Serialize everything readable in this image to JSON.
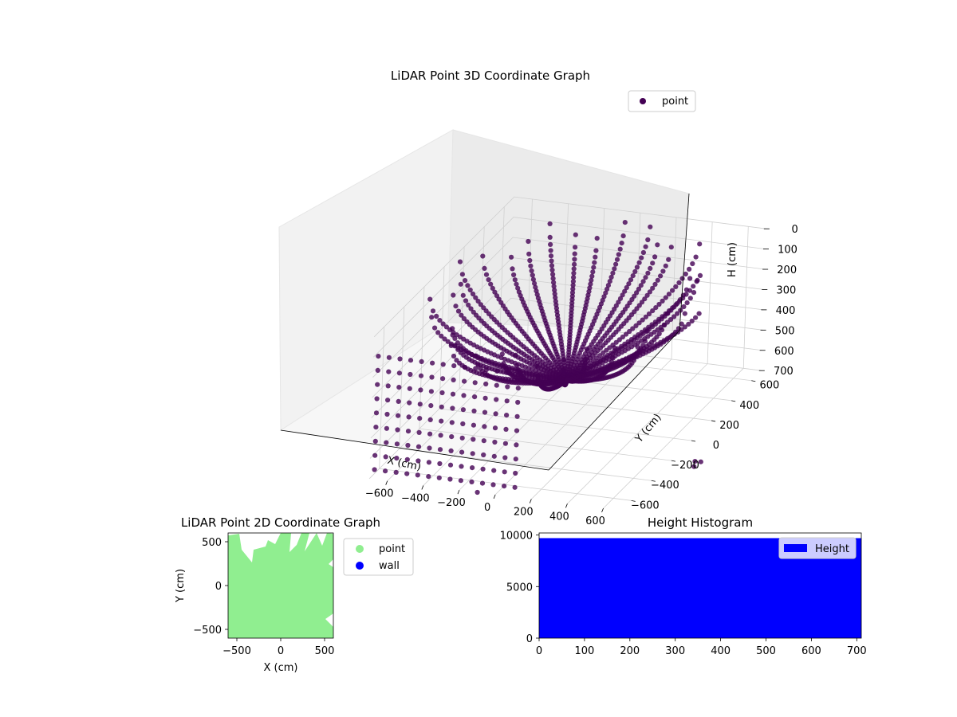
{
  "chart_data": [
    {
      "type": "scatter",
      "projection": "3d",
      "title": "LiDAR Point 3D Coordinate Graph",
      "xlabel": "X (cm)",
      "ylabel": "Y (cm)",
      "zlabel": "H (cm)",
      "xlim": [
        -700,
        700
      ],
      "ylim": [
        -700,
        700
      ],
      "zlim": [
        700,
        0
      ],
      "z_inverted": true,
      "xticks": [
        -600,
        -400,
        -200,
        0,
        200,
        400,
        600
      ],
      "yticks": [
        -600,
        -400,
        -200,
        0,
        200,
        400,
        600
      ],
      "zticks": [
        0,
        100,
        200,
        300,
        400,
        500,
        600,
        700
      ],
      "grid": true,
      "legend_position": "upper-right",
      "series": [
        {
          "name": "point",
          "color": "#440154",
          "description_of_shape": "dense fan of points sweeping from the high outer ring down to a central low point near x=0,y=0,h=500 plus a stepped grid of points on the outer walls",
          "sample_points": [
            {
              "x": -600,
              "y": -600,
              "h": 200
            },
            {
              "x": -500,
              "y": 500,
              "h": 50
            },
            {
              "x": 0,
              "y": 0,
              "h": 480
            },
            {
              "x": 300,
              "y": 400,
              "h": 20
            },
            {
              "x": 600,
              "y": -600,
              "h": 650
            },
            {
              "x": 600,
              "y": 600,
              "h": 100
            }
          ]
        }
      ]
    },
    {
      "type": "scatter",
      "title": "LiDAR Point 2D Coordinate Graph",
      "xlabel": "X (cm)",
      "ylabel": "Y (cm)",
      "xlim": [
        -600,
        600
      ],
      "ylim": [
        -600,
        600
      ],
      "xticks": [
        -500,
        0,
        500
      ],
      "yticks": [
        -500,
        0,
        500
      ],
      "legend_position": "outside-right",
      "series": [
        {
          "name": "point",
          "color": "#90ee90",
          "coverage": "nearly full square with white gaps at top edge and right edge"
        },
        {
          "name": "wall",
          "color": "#0000ff",
          "coverage": "none visible"
        }
      ]
    },
    {
      "type": "bar",
      "subtype": "histogram",
      "title": "Height Histogram",
      "xlabel": "",
      "ylabel": "",
      "xlim": [
        0,
        710
      ],
      "ylim": [
        0,
        10200
      ],
      "xticks": [
        0,
        100,
        200,
        300,
        400,
        500,
        600,
        700
      ],
      "yticks": [
        0,
        5000,
        10000
      ],
      "legend_position": "upper-right",
      "series": [
        {
          "name": "Height",
          "color": "#0000ff",
          "bins": [
            {
              "from": 0,
              "to": 710,
              "value": 9700
            }
          ]
        }
      ]
    }
  ]
}
